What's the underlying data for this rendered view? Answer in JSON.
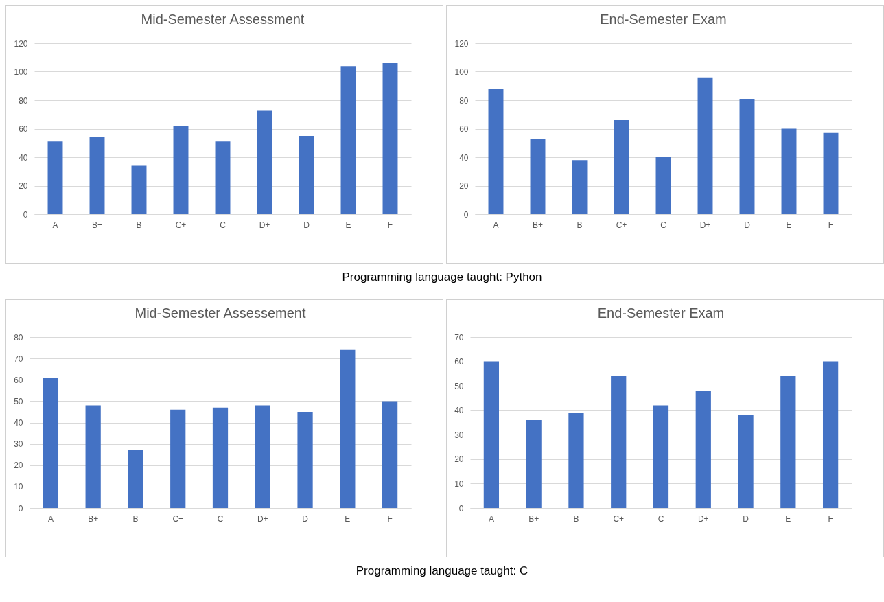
{
  "chart_data": [
    {
      "type": "bar",
      "title": "Mid-Semester Assessment",
      "categories": [
        "A",
        "B+",
        "B",
        "C+",
        "C",
        "D+",
        "D",
        "E",
        "F"
      ],
      "values": [
        51,
        54,
        34,
        62,
        51,
        73,
        55,
        104,
        106
      ],
      "color": "#4472c4",
      "ylim": [
        0,
        120
      ],
      "yticks": [
        0,
        20,
        40,
        60,
        80,
        100,
        120
      ],
      "grid": "y",
      "annotations": [
        "Programming language taught: Python"
      ]
    },
    {
      "type": "bar",
      "title": "End-Semester Exam",
      "categories": [
        "A",
        "B+",
        "B",
        "C+",
        "C",
        "D+",
        "D",
        "E",
        "F"
      ],
      "values": [
        88,
        53,
        38,
        66,
        40,
        96,
        81,
        60,
        57
      ],
      "color": "#4472c4",
      "ylim": [
        0,
        120
      ],
      "yticks": [
        0,
        20,
        40,
        60,
        80,
        100,
        120
      ],
      "grid": "y"
    },
    {
      "type": "bar",
      "title": "Mid-Semester Assessement",
      "categories": [
        "A",
        "B+",
        "B",
        "C+",
        "C",
        "D+",
        "D",
        "E",
        "F"
      ],
      "values": [
        61,
        48,
        27,
        46,
        47,
        48,
        45,
        74,
        50
      ],
      "color": "#4472c4",
      "ylim": [
        0,
        80
      ],
      "yticks": [
        0,
        10,
        20,
        30,
        40,
        50,
        60,
        70,
        80
      ],
      "grid": "y",
      "annotations": [
        "Programming language taught: C"
      ]
    },
    {
      "type": "bar",
      "title": "End-Semester Exam",
      "categories": [
        "A",
        "B+",
        "B",
        "C+",
        "C",
        "D+",
        "D",
        "E",
        "F"
      ],
      "values": [
        60,
        36,
        39,
        54,
        42,
        48,
        38,
        54,
        60
      ],
      "color": "#4472c4",
      "ylim": [
        0,
        70
      ],
      "yticks": [
        0,
        10,
        20,
        30,
        40,
        50,
        60,
        70
      ],
      "grid": "y"
    }
  ]
}
